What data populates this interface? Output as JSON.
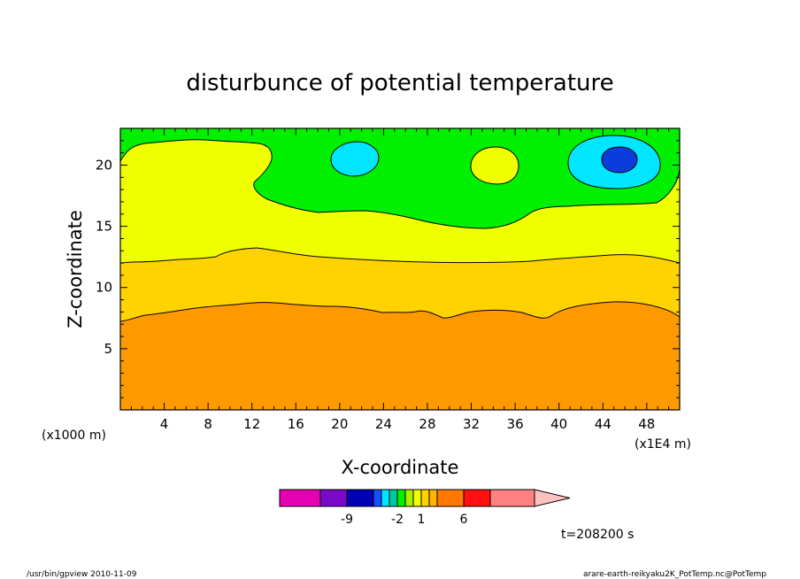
{
  "chart_data": {
    "type": "filled-contour",
    "title": "disturbunce of potential temperature",
    "xlabel": "X-coordinate",
    "ylabel": "Z-coordinate",
    "x_unit_left": "(x1000 m)",
    "x_unit_right": "(x1E4 m)",
    "xlim": [
      0,
      51
    ],
    "ylim": [
      0,
      23
    ],
    "x_ticks": [
      "4",
      "8",
      "12",
      "16",
      "20",
      "24",
      "28",
      "32",
      "36",
      "40",
      "44",
      "48"
    ],
    "y_ticks": [
      "5",
      "10",
      "15",
      "20"
    ],
    "time_label": "t=208200 s",
    "colorbar": {
      "tick_labels": [
        "-9",
        "-2",
        "1",
        "6"
      ],
      "colors": [
        "#e600b4",
        "#7a0ac8",
        "#0000b4",
        "#1450ff",
        "#00e6ff",
        "#00c8a0",
        "#00f000",
        "#aaf000",
        "#f0ff00",
        "#ffd200",
        "#ffb400",
        "#ff7800",
        "#ff0f0f",
        "#ff8080",
        "#ffc0c0"
      ]
    },
    "regions": [
      {
        "name": "-2 to -1",
        "color": "#0c3cdc"
      },
      {
        "name": "-1 to 0",
        "color": "#00e6ff"
      },
      {
        "name": "0 to 1",
        "color": "#00f000"
      },
      {
        "name": "1 to 2",
        "color": "#f0ff00"
      },
      {
        "name": "2 to 3",
        "color": "#ffd200"
      },
      {
        "name": "3 to 4",
        "color": "#ff9900"
      }
    ]
  },
  "footer": {
    "left": "/usr/bin/gpview   2010-11-09",
    "right": "arare-earth-reikyaku2K_PotTemp.nc@PotTemp"
  }
}
